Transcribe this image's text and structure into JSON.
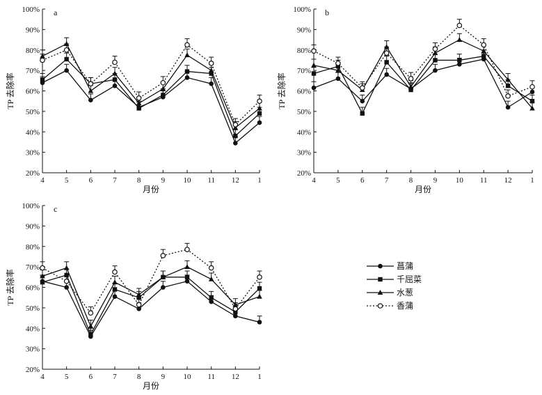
{
  "legend": {
    "placement": "right-bottom",
    "entries": [
      {
        "name": "菖蒲",
        "marker": "filled-circle",
        "line": "solid"
      },
      {
        "name": "千屈菜",
        "marker": "filled-square",
        "line": "solid"
      },
      {
        "name": "水葱",
        "marker": "filled-triangle",
        "line": "solid"
      },
      {
        "name": "香蒲",
        "marker": "open-circle",
        "line": "dotted"
      }
    ]
  },
  "chart_data": [
    {
      "type": "line",
      "panel_label": "a",
      "xlabel": "月份",
      "ylabel": "TP 去除率",
      "categories": [
        "4",
        "5",
        "6",
        "7",
        "8",
        "9",
        "10",
        "11",
        "12",
        "1"
      ],
      "yticks": [
        "20%",
        "30%",
        "40%",
        "50%",
        "60%",
        "70%",
        "80%",
        "90%",
        "100%"
      ],
      "ylim": [
        20,
        100
      ],
      "grid": false,
      "error_bar_approx": 3,
      "series": [
        {
          "name": "菖蒲",
          "values": [
            64,
            70,
            55.5,
            62.5,
            52,
            57,
            66.5,
            63.5,
            34.5,
            44.5
          ]
        },
        {
          "name": "千屈菜",
          "values": [
            65.5,
            75.5,
            63.5,
            65.5,
            51.5,
            58,
            69.5,
            68.5,
            38,
            49
          ]
        },
        {
          "name": "水葱",
          "values": [
            77,
            83,
            60,
            68.5,
            54,
            61,
            77.5,
            70,
            42,
            51.5
          ]
        },
        {
          "name": "香蒲",
          "values": [
            75,
            80,
            63.5,
            74,
            56.5,
            64,
            82.5,
            73.5,
            43.5,
            55
          ]
        }
      ]
    },
    {
      "type": "line",
      "panel_label": "b",
      "xlabel": "月份",
      "ylabel": "TP 去除率",
      "categories": [
        "4",
        "5",
        "6",
        "7",
        "8",
        "9",
        "10",
        "11",
        "12",
        "1"
      ],
      "yticks": [
        "20%",
        "30%",
        "40%",
        "50%",
        "60%",
        "70%",
        "80%",
        "90%",
        "100%"
      ],
      "ylim": [
        20,
        100
      ],
      "grid": false,
      "error_bar_approx": 3,
      "series": [
        {
          "name": "菖蒲",
          "values": [
            61.5,
            66,
            55,
            68,
            61,
            70,
            73,
            75.5,
            52,
            59.5
          ]
        },
        {
          "name": "千屈菜",
          "values": [
            68.5,
            72,
            49,
            74,
            60.5,
            75,
            75,
            77,
            62.5,
            55
          ]
        },
        {
          "name": "水葱",
          "values": [
            72.5,
            70,
            60.5,
            81.5,
            62,
            78.5,
            85,
            79.5,
            65.5,
            51.5
          ]
        },
        {
          "name": "香蒲",
          "values": [
            79.5,
            73.5,
            61.5,
            78.5,
            66,
            80.5,
            92,
            82.5,
            57.5,
            62
          ]
        }
      ]
    },
    {
      "type": "line",
      "panel_label": "c",
      "xlabel": "月份",
      "ylabel": "TP 去除率",
      "categories": [
        "4",
        "5",
        "6",
        "7",
        "8",
        "9",
        "10",
        "11",
        "12",
        "1"
      ],
      "yticks": [
        "20%",
        "30%",
        "40%",
        "50%",
        "60%",
        "70%",
        "80%",
        "90%",
        "100%"
      ],
      "ylim": [
        20,
        100
      ],
      "grid": false,
      "error_bar_approx": 3,
      "series": [
        {
          "name": "菖蒲",
          "values": [
            63,
            60,
            36,
            55.5,
            49.5,
            60,
            63,
            53,
            46,
            43
          ]
        },
        {
          "name": "千屈菜",
          "values": [
            62.5,
            66,
            37,
            59,
            55,
            65,
            65,
            55,
            48,
            59.5
          ]
        },
        {
          "name": "水葱",
          "values": [
            65.5,
            69.5,
            41,
            62.5,
            56.5,
            65,
            70,
            64,
            51.5,
            55.5
          ]
        },
        {
          "name": "香蒲",
          "values": [
            69.5,
            63,
            47.5,
            67.5,
            51.5,
            75.5,
            78.5,
            69.5,
            49.5,
            65
          ]
        }
      ]
    }
  ]
}
